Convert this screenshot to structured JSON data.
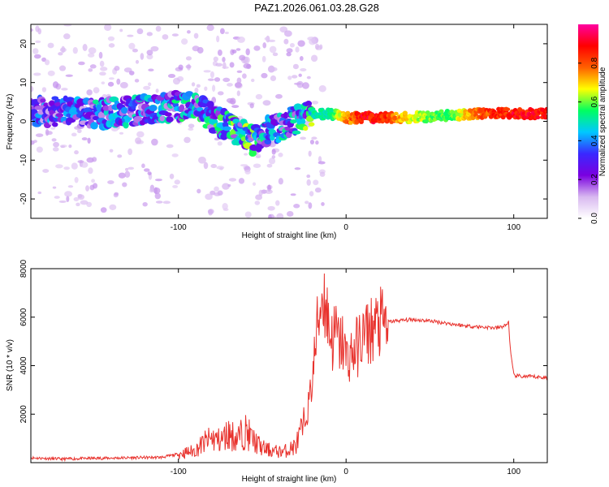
{
  "chart_data": [
    {
      "type": "heatmap",
      "title": "PAZ1.2026.061.03.28.G28",
      "xlabel": "Height of straight line (km)",
      "ylabel": "Frequency (Hz)",
      "xlim": [
        -188,
        120
      ],
      "ylim": [
        -25,
        25
      ],
      "xticks": [
        -100,
        0,
        100
      ],
      "xtick_labels": [
        "-100",
        "0",
        "100"
      ],
      "yticks": [
        -20,
        -10,
        0,
        10,
        20
      ],
      "ytick_labels": [
        "-20",
        "-10",
        "0",
        "10",
        "20"
      ],
      "colorbar": {
        "label": "Normalized spectral amplitude",
        "range": [
          0,
          1
        ],
        "ticks": [
          0.0,
          0.2,
          0.4,
          0.6,
          0.8
        ],
        "tick_labels": [
          "0.0",
          "0.2",
          "0.4",
          "0.6",
          "0.8"
        ],
        "colormap": [
          "#ffffff",
          "#d8b8f0",
          "#7a00e0",
          "#3a28ff",
          "#00c8ff",
          "#00ff60",
          "#ffff00",
          "#ff6000",
          "#ff0000",
          "#ff00a0"
        ]
      },
      "ridge": {
        "x": [
          -188,
          -170,
          -150,
          -130,
          -110,
          -100,
          -90,
          -80,
          -70,
          -60,
          -55,
          -50,
          -40,
          -30,
          -20,
          -10,
          0,
          10,
          20,
          40,
          60,
          80,
          100,
          120
        ],
        "freq": [
          2.5,
          2.5,
          2.0,
          2.5,
          3.5,
          4.0,
          3.5,
          1.0,
          -1.5,
          -3.5,
          -5.0,
          -3.0,
          -1.5,
          0.5,
          1.5,
          2.0,
          0.8,
          1.0,
          1.0,
          1.0,
          1.5,
          2.0,
          2.0,
          2.0
        ],
        "peak_amplitude": [
          0.35,
          0.35,
          0.4,
          0.4,
          0.4,
          0.45,
          0.45,
          0.45,
          0.5,
          0.5,
          0.5,
          0.45,
          0.4,
          0.45,
          0.55,
          0.55,
          0.8,
          0.95,
          0.95,
          0.7,
          0.6,
          0.85,
          0.95,
          0.95
        ]
      }
    },
    {
      "type": "line",
      "xlabel": "Height of straight line (km)",
      "ylabel": "SNR (10 * v/v)",
      "xlim": [
        -188,
        120
      ],
      "ylim": [
        0,
        8000
      ],
      "xticks": [
        -100,
        0,
        100
      ],
      "xtick_labels": [
        "-100",
        "0",
        "100"
      ],
      "yticks": [
        2000,
        4000,
        6000,
        8000
      ],
      "ytick_labels": [
        "2000",
        "4000",
        "6000",
        "8000"
      ],
      "color": "#e8322d",
      "series": [
        {
          "name": "SNR",
          "x": [
            -188,
            -170,
            -150,
            -130,
            -110,
            -100,
            -90,
            -85,
            -80,
            -75,
            -70,
            -65,
            -60,
            -55,
            -50,
            -45,
            -40,
            -35,
            -30,
            -25,
            -22,
            -20,
            -18,
            -16,
            -14,
            -12,
            -10,
            -8,
            -6,
            -4,
            -2,
            0,
            5,
            10,
            15,
            20,
            25,
            30,
            40,
            50,
            60,
            70,
            80,
            90,
            95,
            97,
            98,
            100,
            105,
            110,
            120
          ],
          "y": [
            200,
            150,
            180,
            200,
            220,
            350,
            500,
            800,
            1000,
            900,
            1200,
            1000,
            1300,
            900,
            600,
            500,
            450,
            500,
            700,
            1500,
            2500,
            3500,
            5000,
            6200,
            7000,
            6500,
            5500,
            5000,
            5400,
            4800,
            5000,
            4300,
            4600,
            5200,
            5500,
            5700,
            5800,
            5850,
            5900,
            5850,
            5750,
            5650,
            5600,
            5550,
            5650,
            5800,
            4600,
            3600,
            3550,
            3550,
            3500
          ]
        }
      ]
    }
  ]
}
